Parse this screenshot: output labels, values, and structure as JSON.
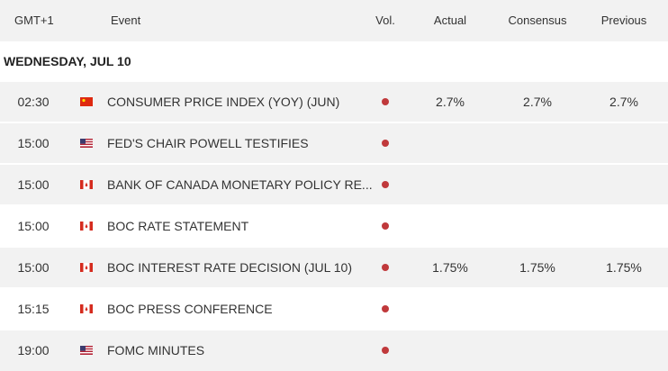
{
  "header": {
    "time_zone": "GMT+1",
    "event": "Event",
    "vol": "Vol.",
    "actual": "Actual",
    "consensus": "Consensus",
    "previous": "Previous"
  },
  "date": "WEDNESDAY, JUL 10",
  "rows": [
    {
      "time": "02:30",
      "event": "CONSUMER PRICE INDEX (YOY) (JUN)",
      "actual": "2.7%",
      "consensus": "2.7%",
      "previous": "2.7%"
    },
    {
      "time": "15:00",
      "event": "FED'S CHAIR POWELL TESTIFIES"
    },
    {
      "time": "15:00",
      "event": "BANK OF CANADA MONETARY POLICY RE..."
    },
    {
      "time": "15:00",
      "event": "BOC RATE STATEMENT"
    },
    {
      "time": "15:00",
      "event": "BOC INTEREST RATE DECISION (JUL 10)",
      "actual": "1.75%",
      "consensus": "1.75%",
      "previous": "1.75%"
    },
    {
      "time": "15:15",
      "event": "BOC PRESS CONFERENCE"
    },
    {
      "time": "19:00",
      "event": "FOMC MINUTES"
    }
  ]
}
